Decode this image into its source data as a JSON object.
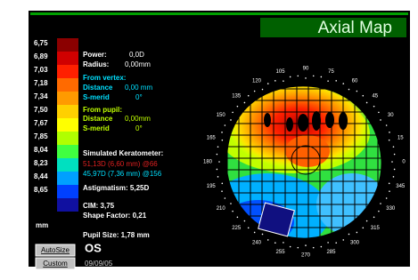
{
  "header": {
    "title": "Axial Map"
  },
  "scale": {
    "items": [
      {
        "label": "6,75",
        "color": "#8b0000"
      },
      {
        "label": "6,89",
        "color": "#d00000"
      },
      {
        "label": "7,03",
        "color": "#ff2000"
      },
      {
        "label": "7,18",
        "color": "#ff6a00"
      },
      {
        "label": "7,34",
        "color": "#ff9a00"
      },
      {
        "label": "7,50",
        "color": "#ffd000"
      },
      {
        "label": "7,67",
        "color": "#ffff00"
      },
      {
        "label": "7,85",
        "color": "#b0ff00"
      },
      {
        "label": "8,04",
        "color": "#40ff40"
      },
      {
        "label": "8,23",
        "color": "#00e0c0"
      },
      {
        "label": "8,44",
        "color": "#00a0ff"
      },
      {
        "label": "8,65",
        "color": "#0040ff"
      },
      {
        "label": "",
        "color": "#1010a0"
      }
    ],
    "unit": "mm"
  },
  "info": {
    "power_label": "Power:",
    "power": "0,0D",
    "radius_label": "Radius:",
    "radius": "0,00mm",
    "vertex_label": "From vertex:",
    "vertex_distance_label": "Distance",
    "vertex_distance": "0,00 mm",
    "vertex_smerid_label": "S-merid",
    "vertex_smerid": "0°",
    "pupil_label": "From pupil:",
    "pupil_distance_label": "Distance",
    "pupil_distance": "0,00mm",
    "pupil_smerid_label": "S-merid",
    "pupil_smerid": "0°",
    "simk_label": "Simulated Keratometer:",
    "simk_steep": "51,13D (6,60 mm) @66",
    "simk_flat": "45,97D (7,36 mm) @156",
    "astig": "Astigmatism:  5,25D",
    "cim": "CIM:  3,75",
    "shape": "Shape Factor: 0,21",
    "pupil_size": "Pupil Size: 1,78 mm",
    "eye": "OS",
    "date": "09/09/05"
  },
  "buttons": [
    "AutoSize",
    "Custom"
  ],
  "angles": [
    0,
    15,
    30,
    45,
    60,
    75,
    90,
    105,
    120,
    135,
    150,
    165,
    180,
    195,
    210,
    225,
    240,
    255,
    270,
    285,
    300,
    315,
    330,
    345
  ]
}
